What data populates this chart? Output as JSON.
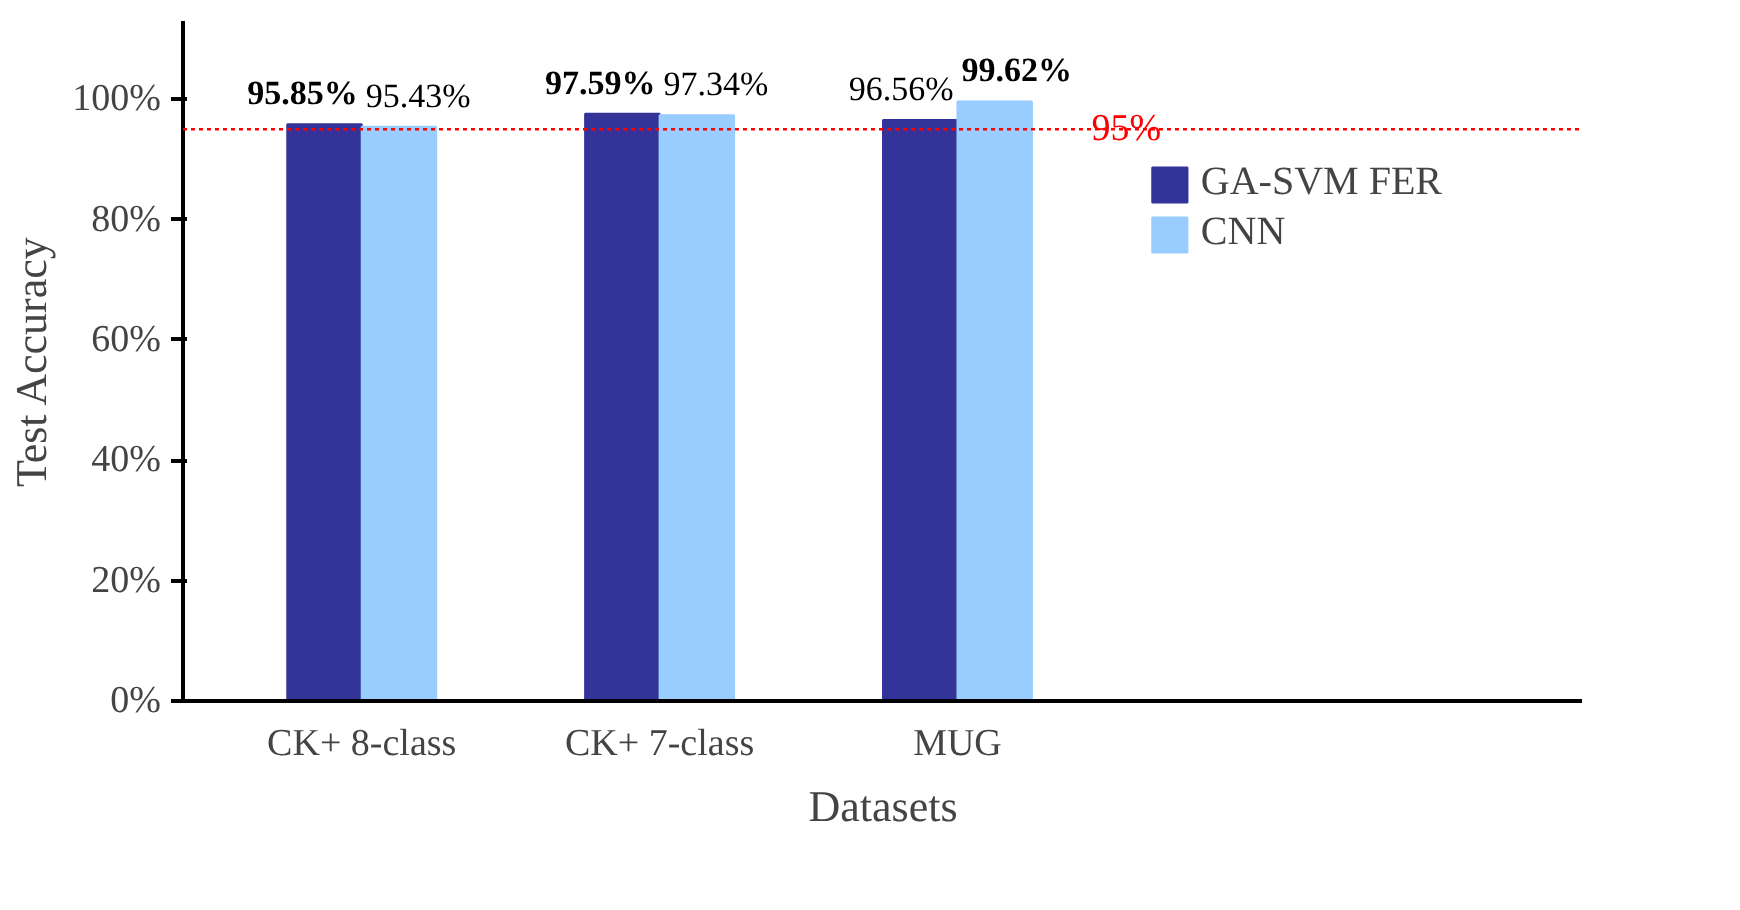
{
  "chart_data": {
    "type": "bar",
    "xlabel": "Datasets",
    "ylabel": "Test Accuracy",
    "categories": [
      "CK+ 8-class",
      "CK+ 7-class",
      "MUG"
    ],
    "series": [
      {
        "name": "GA-SVM FER",
        "color": "#333399",
        "values": [
          95.85,
          97.59,
          96.56
        ],
        "value_labels": [
          "95.85%",
          "97.59%",
          "96.56%"
        ]
      },
      {
        "name": "CNN",
        "color": "#99ccff",
        "values": [
          95.43,
          97.34,
          99.62
        ],
        "value_labels": [
          "95.43%",
          "97.34%",
          "99.62%"
        ]
      }
    ],
    "ylim": [
      0,
      113
    ],
    "yticks": [
      {
        "value": 0,
        "label": "0%"
      },
      {
        "value": 20,
        "label": "20%"
      },
      {
        "value": 40,
        "label": "40%"
      },
      {
        "value": 60,
        "label": "60%"
      },
      {
        "value": 80,
        "label": "80%"
      },
      {
        "value": 100,
        "label": "100%"
      }
    ],
    "ref_lines": [
      {
        "axis": "y",
        "value": 95,
        "label": "95%",
        "color": "#ff0000",
        "line_style": "dotted"
      }
    ],
    "grid": false,
    "legend": "right"
  }
}
